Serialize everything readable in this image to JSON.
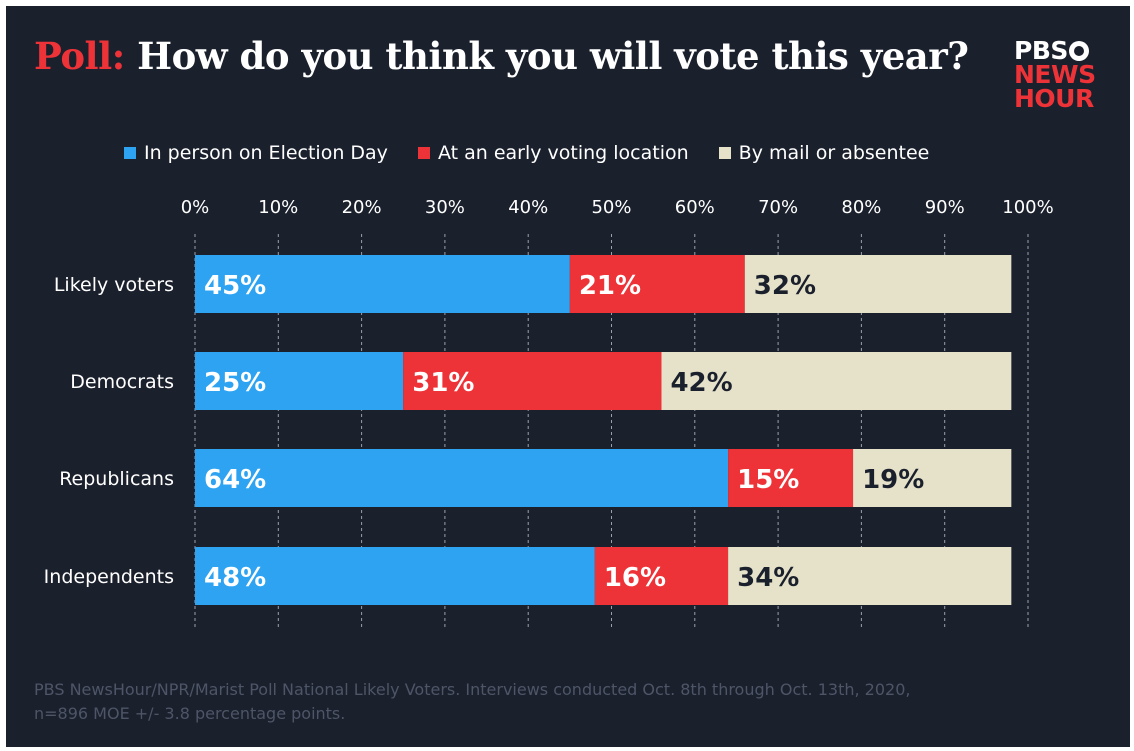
{
  "header": {
    "kicker": "Poll:",
    "title": "How do you think you will vote this year?"
  },
  "logo": {
    "line1": "PBS",
    "line2": "NEWS",
    "line3": "HOUR"
  },
  "colors": {
    "background": "#1b202d",
    "in_person": "#2ea3f2",
    "early": "#ee3338",
    "mail": "#e6e2c9",
    "kicker": "#ee3338",
    "source_text": "#4d5567"
  },
  "chart_data": {
    "type": "bar",
    "orientation": "horizontal",
    "stacked": true,
    "categories": [
      "Likely voters",
      "Democrats",
      "Republicans",
      "Independents"
    ],
    "series": [
      {
        "name": "In person on Election Day",
        "values": [
          45,
          25,
          64,
          48
        ],
        "labels": [
          "45%",
          "25%",
          "64%",
          "48%"
        ],
        "color": "#2ea3f2"
      },
      {
        "name": "At an early voting location",
        "values": [
          21,
          31,
          15,
          16
        ],
        "labels": [
          "21%",
          "31%",
          "15%",
          "16%"
        ],
        "color": "#ee3338"
      },
      {
        "name": "By mail or absentee",
        "values": [
          32,
          42,
          19,
          34
        ],
        "labels": [
          "32%",
          "42%",
          "19%",
          "34%"
        ],
        "color": "#e6e2c9"
      }
    ],
    "xlim": [
      0,
      100
    ],
    "ticks": [
      "0%",
      "10%",
      "20%",
      "30%",
      "40%",
      "50%",
      "60%",
      "70%",
      "80%",
      "90%",
      "100%"
    ],
    "grid": true,
    "legend": "top"
  },
  "source": "PBS NewsHour/NPR/Marist Poll National Likely Voters. Interviews conducted Oct. 8th through Oct. 13th, 2020, n=896 MOE +/- 3.8 percentage points."
}
